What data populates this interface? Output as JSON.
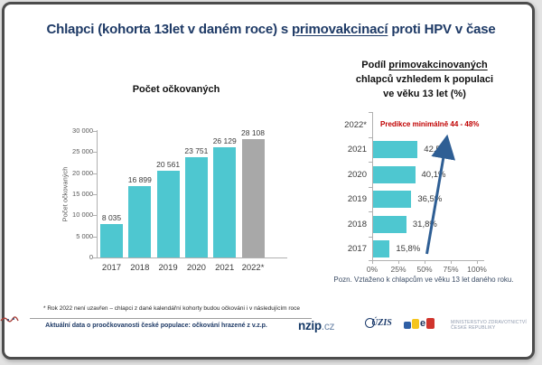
{
  "slide": {
    "title": {
      "pre": "Chlapci (kohorta 13let v daném roce) s ",
      "underlined": "primovakcinací",
      "post": " proti HPV v čase"
    },
    "footnote": "* Rok 2022 není uzavřen – chlapci z dané kalendářní kohorty budou očkováni i v následujícím roce",
    "credit": "Aktuální data o proočkovanosti české populace: očkování hrazené z v.z.p.",
    "logos": {
      "nzip_bold": "nzip",
      "nzip_suffix": ".cz",
      "uzis": "ÚZIS",
      "ministry_line1": "MINISTERSTVO ZDRAVOTNICTVÍ",
      "ministry_line2": "ČESKÉ REPUBLIKY"
    }
  },
  "colors": {
    "title_navy": "#1e3a66",
    "bar_teal": "#4ec7d0",
    "bar_gray": "#a8a8a8",
    "prediction_red": "#c00000",
    "arrow_blue": "#2e5e94",
    "axis_gray": "#b0b0b0",
    "tick_text": "#595959",
    "label_text": "#3a3a3a"
  },
  "chart_data": [
    {
      "type": "bar",
      "orientation": "vertical",
      "title": "Počet očkovaných",
      "ylabel": "Počet očkovaných",
      "xlabel": "",
      "categories": [
        "2017",
        "2018",
        "2019",
        "2020",
        "2021",
        "2022*"
      ],
      "values": [
        8035,
        16899,
        20561,
        23751,
        26129,
        28108
      ],
      "value_labels": [
        "8 035",
        "16 899",
        "20 561",
        "23 751",
        "26 129",
        "28 108"
      ],
      "ylim": [
        0,
        30000
      ],
      "ytick_values": [
        0,
        5000,
        10000,
        15000,
        20000,
        25000,
        30000
      ],
      "ytick_labels": [
        "0",
        "5 000",
        "10 000",
        "15 000",
        "20 000",
        "25 000",
        "30 000"
      ],
      "grid": false,
      "legend": "none",
      "bar_colors": [
        "#4ec7d0",
        "#4ec7d0",
        "#4ec7d0",
        "#4ec7d0",
        "#4ec7d0",
        "#a8a8a8"
      ]
    },
    {
      "type": "bar",
      "orientation": "horizontal",
      "title": "Podíl primovakcinovaných chlapců vzhledem k populaci ve věku 13 let (%)",
      "title_lines": {
        "line1_pre": "Podíl ",
        "line1_underlined": "primovakcinovaných",
        "line2": "chlapců vzhledem k populaci",
        "line3": "ve věku 13 let (%)"
      },
      "categories": [
        "2022*",
        "2021",
        "2020",
        "2019",
        "2018",
        "2017"
      ],
      "values": [
        null,
        42.5,
        40.1,
        36.5,
        31.8,
        15.8
      ],
      "value_labels": [
        "",
        "42,5%",
        "40,1%",
        "36,5%",
        "31,8%",
        "15,8%"
      ],
      "annotation": "Predikce minimálně 44 - 48%",
      "xlim": [
        0,
        100
      ],
      "xtick_values": [
        0,
        25,
        50,
        75,
        100
      ],
      "xtick_labels": [
        "0%",
        "25%",
        "50%",
        "75%",
        "100%"
      ],
      "grid": false,
      "legend": "none",
      "trend_arrow": true,
      "note": "Pozn. Vztaženo k chlapcům ve věku 13 let daného roku."
    }
  ]
}
